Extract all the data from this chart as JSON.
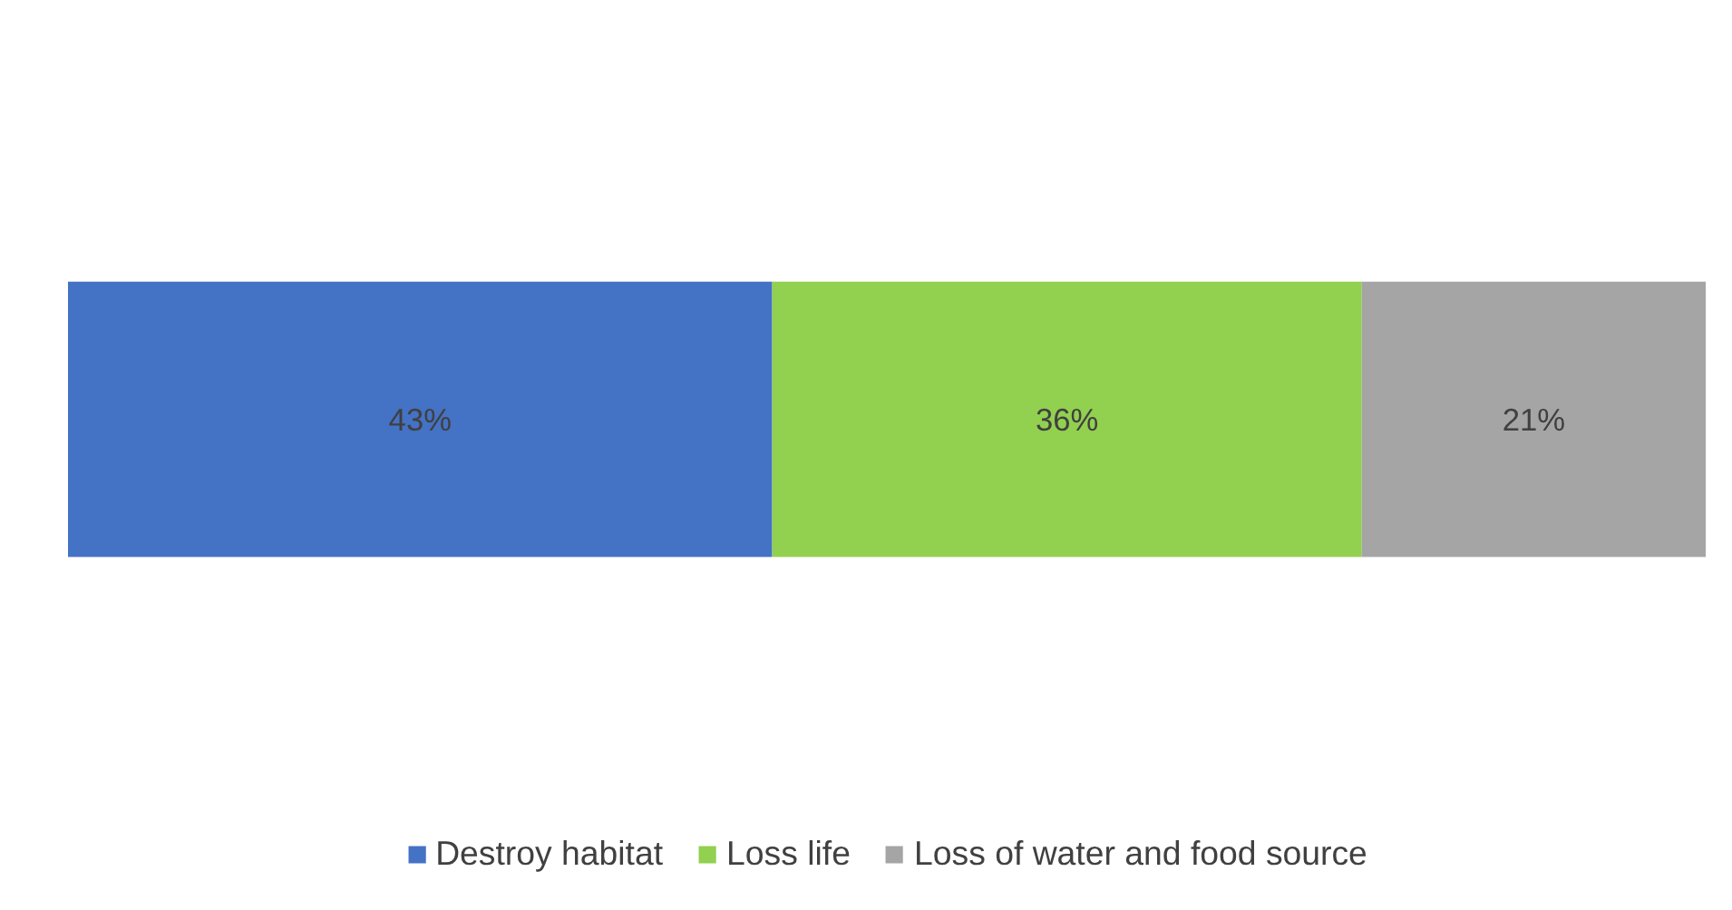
{
  "chart_data": {
    "type": "bar",
    "orientation": "horizontal",
    "stacked": true,
    "categories": [
      null
    ],
    "legend": "bottom",
    "tick_labels": false,
    "xlim": [
      0,
      100
    ],
    "series": [
      {
        "name": "Destroy habitat",
        "color": "#4472c4",
        "values": [
          43
        ],
        "value_labels": [
          "43%"
        ]
      },
      {
        "name": "Loss life",
        "color": "#92d050",
        "values": [
          36
        ],
        "value_labels": [
          "36%"
        ]
      },
      {
        "name": "Loss of water and food source",
        "color": "#a5a5a5",
        "values": [
          21
        ],
        "value_labels": [
          "21%"
        ]
      }
    ]
  }
}
